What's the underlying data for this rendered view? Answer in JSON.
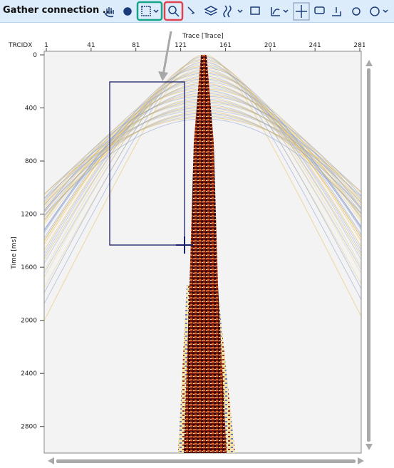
{
  "toolbar": {
    "title": "Gather connection ..."
  },
  "plot": {
    "x_axis": {
      "header": "TRCIDX",
      "label": "Trace [Trace]",
      "range": [
        1,
        281
      ],
      "ticks": [
        1,
        41,
        81,
        121,
        161,
        201,
        241,
        281
      ]
    },
    "y_axis": {
      "label": "Time [ms]",
      "range": [
        0,
        3000
      ],
      "ticks": [
        0,
        400,
        800,
        1200,
        1600,
        2000,
        2400,
        2800
      ]
    }
  }
}
